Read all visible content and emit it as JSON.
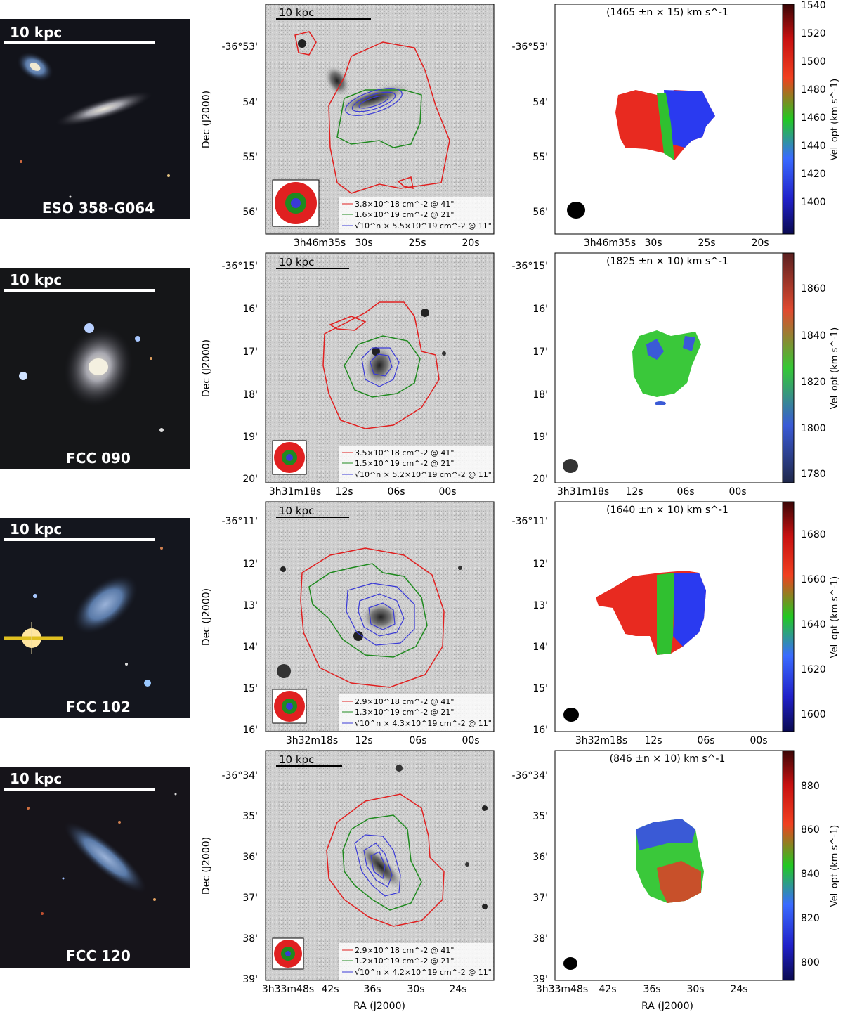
{
  "figure": {
    "rows": [
      {
        "galaxy": "ESO 358-G064",
        "scalebar": "10 kpc",
        "dec_ticks": [
          "-36°53'",
          "54'",
          "55'",
          "56'"
        ],
        "ra_ticks": [
          "3h46m35s",
          "30s",
          "25s",
          "20s"
        ],
        "legend": [
          "3.8×10^18 cm^-2 @ 41\"",
          "1.6×10^19 cm^-2 @ 21\"",
          "√10^n × 5.5×10^19 cm^-2 @ 11\""
        ],
        "vel_title": "(1465 ±n × 15) km s^-1",
        "cbar_ticks": [
          "1540",
          "1520",
          "1500",
          "1480",
          "1460",
          "1440",
          "1420",
          "1400"
        ]
      },
      {
        "galaxy": "FCC 090",
        "scalebar": "10 kpc",
        "dec_ticks": [
          "-36°15'",
          "16'",
          "17'",
          "18'",
          "19'",
          "20'"
        ],
        "ra_ticks": [
          "3h31m18s",
          "12s",
          "06s",
          "00s"
        ],
        "legend": [
          "3.5×10^18 cm^-2 @ 41\"",
          "1.5×10^19 cm^-2 @ 21\"",
          "√10^n × 5.2×10^19 cm^-2 @ 11\""
        ],
        "vel_title": "(1825 ±n × 10) km s^-1",
        "cbar_ticks": [
          "1860",
          "1840",
          "1820",
          "1800",
          "1780"
        ]
      },
      {
        "galaxy": "FCC 102",
        "scalebar": "10 kpc",
        "dec_ticks": [
          "-36°11'",
          "12'",
          "13'",
          "14'",
          "15'",
          "16'"
        ],
        "ra_ticks": [
          "3h32m18s",
          "12s",
          "06s",
          "00s"
        ],
        "legend": [
          "2.9×10^18 cm^-2 @ 41\"",
          "1.3×10^19 cm^-2 @ 21\"",
          "√10^n × 4.3×10^19 cm^-2 @ 11\""
        ],
        "vel_title": "(1640 ±n × 10) km s^-1",
        "cbar_ticks": [
          "1680",
          "1660",
          "1640",
          "1620",
          "1600"
        ]
      },
      {
        "galaxy": "FCC 120",
        "scalebar": "10 kpc",
        "dec_ticks": [
          "-36°34'",
          "35'",
          "36'",
          "37'",
          "38'",
          "39'"
        ],
        "ra_ticks": [
          "3h33m48s",
          "42s",
          "36s",
          "30s",
          "24s"
        ],
        "legend": [
          "2.9×10^18 cm^-2 @ 41\"",
          "1.2×10^19 cm^-2 @ 21\"",
          "√10^n × 4.2×10^19 cm^-2 @ 11\""
        ],
        "vel_title": "(846 ±n × 10) km s^-1",
        "cbar_ticks": [
          "880",
          "860",
          "840",
          "820",
          "800"
        ]
      }
    ],
    "dec_label": "Dec (J2000)",
    "ra_label": "RA (J2000)",
    "cbar_label": "Vel_opt (km s^-1)",
    "colors": {
      "red": "#e02020",
      "green": "#1f8a1f",
      "blue": "#3a3ad6"
    }
  }
}
